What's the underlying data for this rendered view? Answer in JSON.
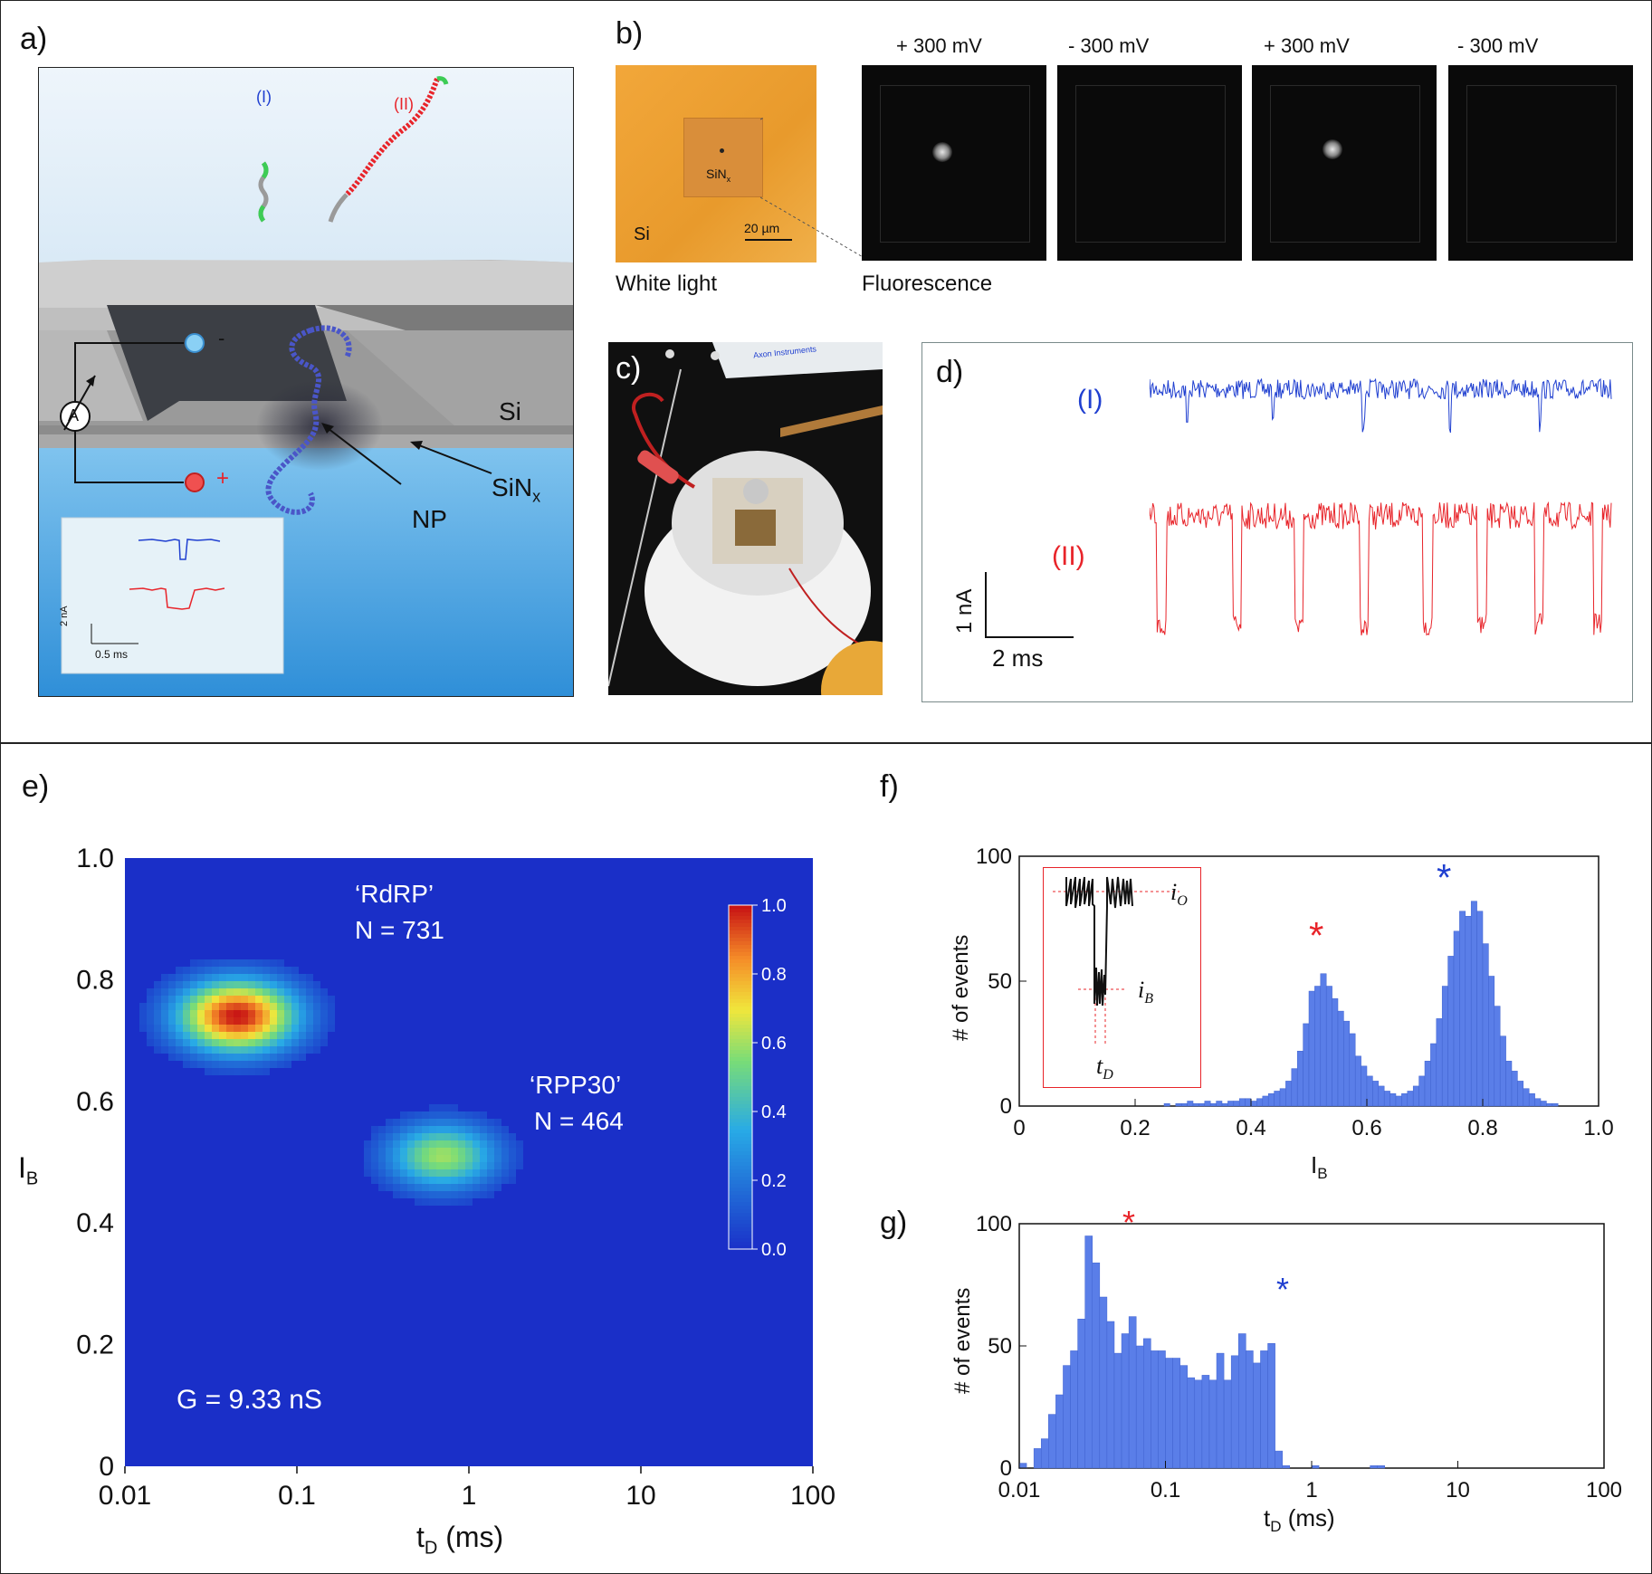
{
  "panels": {
    "a": {
      "label": "a)",
      "molecule_I": "(I)",
      "molecule_II": "(II)",
      "minus": "-",
      "plus": "+",
      "ammeter": "A",
      "si": "Si",
      "sinx_main": "SiN",
      "sinx_sub": "x",
      "np": "NP",
      "inset_scale_y": "2 nA",
      "inset_scale_x": "0.5 ms"
    },
    "b": {
      "label": "b)",
      "sinx_main": "SiN",
      "sinx_sub": "x",
      "si": "Si",
      "scalebar": "20 µm",
      "white_light": "White light",
      "fluorescence": "Fluorescence",
      "voltages": [
        "+ 300 mV",
        "- 300 mV",
        "+ 300 mV",
        "- 300 mV"
      ]
    },
    "c": {
      "label": "c)",
      "device_text": "Axon Instruments"
    },
    "d": {
      "label": "d)",
      "trace_I": "(I)",
      "trace_II": "(II)",
      "scale_y": "1 nA",
      "scale_x": "2 ms"
    },
    "e": {
      "label": "e)",
      "cluster1_name": "‘RdRP’",
      "cluster1_n": "N = 731",
      "cluster2_name": "‘RPP30’",
      "cluster2_n": "N = 464",
      "conductance": "G = 9.33 nS",
      "ylabel_main": "I",
      "ylabel_sub": "B",
      "xlabel_main": "t",
      "xlabel_sub": "D",
      "xlabel_unit": " (ms)"
    },
    "f": {
      "label": "f)",
      "ylabel": "# of events",
      "xlabel_main": "I",
      "xlabel_sub": "B",
      "star": "*",
      "inset_io_main": "i",
      "inset_io_sub": "O",
      "inset_ib_main": "i",
      "inset_ib_sub": "B",
      "inset_td_main": "t",
      "inset_td_sub": "D"
    },
    "g": {
      "label": "g)",
      "ylabel": "# of events",
      "xlabel_main": "t",
      "xlabel_sub": "D",
      "xlabel_unit": " (ms)",
      "star": "*"
    }
  },
  "colors": {
    "molecule_I": "#1f3fd0",
    "molecule_II": "#e8242a",
    "hist_fill": "#5a7ee8",
    "heatmap_bg": "#1a2fc8",
    "star_red": "#e8242a",
    "star_blue": "#1f3fd0"
  },
  "chart_data": [
    {
      "panel": "e",
      "type": "heatmap",
      "xscale": "log",
      "xlim": [
        0.01,
        100
      ],
      "ylim": [
        0,
        1.0
      ],
      "xticks": [
        "0.01",
        "0.1",
        "1",
        "10",
        "100"
      ],
      "yticks": [
        "0",
        "0.2",
        "0.4",
        "0.6",
        "0.8",
        "1.0"
      ],
      "colorbar": {
        "range": [
          0.0,
          1.0
        ],
        "ticks": [
          "0.0",
          "0.2",
          "0.4",
          "0.6",
          "0.8",
          "1.0"
        ]
      },
      "clusters": [
        {
          "name": "‘RdRP’",
          "n": 731,
          "center_td_ms": 0.045,
          "center_ib": 0.74
        },
        {
          "name": "‘RPP30’",
          "n": 464,
          "center_td_ms": 0.7,
          "center_ib": 0.51
        }
      ]
    },
    {
      "panel": "f",
      "type": "bar",
      "xlim": [
        0,
        1.0
      ],
      "ylim": [
        0,
        100
      ],
      "xticks": [
        "0",
        "0.2",
        "0.4",
        "0.6",
        "0.8",
        "1.0"
      ],
      "yticks": [
        "0",
        "50",
        "100"
      ],
      "bin_start": 0.25,
      "bin_width": 0.01,
      "values": [
        1,
        0,
        1,
        1,
        2,
        1,
        1,
        2,
        1,
        2,
        1,
        2,
        2,
        3,
        3,
        2,
        3,
        4,
        5,
        6,
        7,
        10,
        15,
        22,
        33,
        46,
        48,
        53,
        48,
        43,
        38,
        34,
        29,
        20,
        16,
        12,
        10,
        8,
        6,
        5,
        4,
        5,
        6,
        8,
        12,
        18,
        25,
        35,
        48,
        60,
        70,
        78,
        76,
        82,
        78,
        65,
        52,
        40,
        28,
        18,
        14,
        10,
        7,
        5,
        3,
        2,
        1,
        1
      ]
    },
    {
      "panel": "g",
      "type": "bar",
      "xscale": "log",
      "xlim": [
        0.01,
        100
      ],
      "ylim": [
        0,
        100
      ],
      "xticks": [
        "0.01",
        "0.1",
        "1",
        "10",
        "100"
      ],
      "yticks": [
        "0",
        "50",
        "100"
      ],
      "bins_per_decade": 20,
      "bin_start_log10": -2.0,
      "values": [
        2,
        0,
        8,
        12,
        22,
        30,
        42,
        48,
        61,
        95,
        84,
        70,
        60,
        47,
        55,
        62,
        50,
        53,
        48,
        48,
        45,
        45,
        42,
        37,
        36,
        38,
        36,
        47,
        36,
        46,
        55,
        48,
        43,
        48,
        51,
        7,
        1,
        0,
        0,
        0,
        1,
        0,
        0,
        0,
        0,
        0,
        0,
        0,
        1,
        1,
        0,
        0,
        0,
        0,
        0,
        0,
        0,
        0,
        0,
        0,
        0,
        0,
        0,
        0,
        0,
        0,
        0,
        0,
        0,
        0,
        0,
        0,
        0,
        0,
        0,
        0,
        0,
        0,
        0,
        0
      ]
    }
  ]
}
